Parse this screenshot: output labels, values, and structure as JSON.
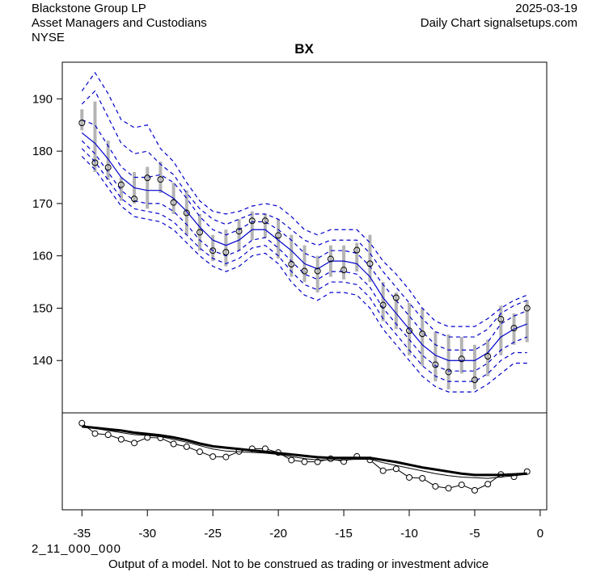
{
  "header": {
    "company": "Blackstone Group LP",
    "industry": "Asset Managers and Custodians",
    "exchange": "NYSE",
    "date": "2025-03-19",
    "source": "Daily Chart signalsetups.com"
  },
  "footer": {
    "code": "2_11_000_000",
    "disclaimer": "Output of a model. Not to be construed as trading or investment advice"
  },
  "chart_data": {
    "type": "line",
    "title": "BX",
    "xlabel": "",
    "ylabel": "",
    "x_ticks": [
      -35,
      -30,
      -25,
      -20,
      -15,
      -10,
      -5,
      0
    ],
    "y_ticks": [
      140,
      150,
      160,
      170,
      180,
      190
    ],
    "xlim": [
      -36.5,
      0.5
    ],
    "ylim": [
      130,
      197
    ],
    "grid": false,
    "colors": {
      "band": "#0000cc",
      "range": "#b4b4b4",
      "close": "#000000"
    },
    "x": [
      -35,
      -34,
      -33,
      -32,
      -31,
      -30,
      -29,
      -28,
      -27,
      -26,
      -25,
      -24,
      -23,
      -22,
      -21,
      -20,
      -19,
      -18,
      -17,
      -16,
      -15,
      -14,
      -13,
      -12,
      -11,
      -10,
      -9,
      -8,
      -7,
      -6,
      -5,
      -4,
      -3,
      -2,
      -1
    ],
    "close": [
      185.4,
      177.8,
      176.9,
      173.6,
      170.9,
      174.9,
      174.6,
      170.2,
      168.2,
      164.5,
      161.0,
      160.7,
      164.7,
      166.7,
      166.7,
      163.9,
      158.4,
      157.1,
      157.1,
      159.4,
      157.3,
      161.1,
      158.5,
      150.6,
      152.0,
      145.7,
      145.1,
      139.2,
      137.8,
      140.3,
      136.3,
      140.8,
      147.9,
      146.2,
      150.0
    ],
    "high": [
      188.0,
      189.5,
      182.0,
      175.0,
      176.0,
      177.0,
      178.0,
      174.0,
      172.5,
      168.0,
      164.0,
      165.0,
      167.0,
      168.5,
      168.0,
      167.0,
      164.0,
      162.0,
      160.0,
      162.0,
      162.0,
      162.5,
      164.0,
      155.0,
      153.0,
      151.0,
      150.0,
      145.5,
      145.0,
      144.5,
      143.0,
      144.0,
      150.5,
      149.0,
      151.5
    ],
    "low": [
      184.0,
      176.0,
      174.5,
      170.5,
      170.0,
      169.0,
      172.0,
      168.0,
      164.0,
      161.0,
      159.0,
      158.0,
      161.0,
      163.0,
      163.5,
      159.5,
      156.0,
      155.0,
      153.0,
      156.0,
      155.5,
      157.0,
      155.0,
      147.5,
      146.0,
      141.0,
      139.0,
      136.0,
      134.5,
      137.5,
      134.5,
      137.0,
      141.0,
      143.0,
      143.5
    ],
    "series": [
      {
        "name": "center",
        "style": "solid",
        "values": [
          183.5,
          181.5,
          178.5,
          175.0,
          173.0,
          172.5,
          172.5,
          171.0,
          168.5,
          165.5,
          163.0,
          162.0,
          163.0,
          165.0,
          165.0,
          163.0,
          161.0,
          158.5,
          157.5,
          159.0,
          159.0,
          158.5,
          156.0,
          152.0,
          149.0,
          146.0,
          143.0,
          141.0,
          140.0,
          140.0,
          140.0,
          141.5,
          144.5,
          146.0,
          147.0
        ]
      },
      {
        "name": "band-up-1",
        "style": "dashed",
        "values": [
          186.0,
          185.0,
          181.0,
          177.0,
          175.0,
          175.0,
          175.5,
          174.0,
          171.0,
          167.5,
          165.0,
          164.0,
          165.0,
          166.5,
          166.5,
          165.0,
          163.0,
          160.5,
          159.5,
          161.0,
          161.0,
          160.5,
          158.0,
          154.5,
          151.5,
          148.5,
          145.5,
          143.0,
          142.0,
          142.0,
          142.0,
          143.5,
          147.0,
          148.5,
          149.5
        ]
      },
      {
        "name": "band-up-2",
        "style": "dashed",
        "values": [
          189.0,
          191.5,
          186.5,
          181.5,
          179.5,
          180.0,
          177.5,
          175.5,
          172.0,
          169.0,
          167.0,
          166.0,
          167.0,
          168.0,
          168.0,
          167.0,
          165.0,
          163.0,
          162.0,
          163.0,
          163.0,
          163.0,
          160.5,
          157.0,
          154.0,
          151.0,
          148.0,
          145.5,
          144.5,
          144.5,
          144.5,
          146.0,
          149.0,
          150.5,
          151.5
        ]
      },
      {
        "name": "band-up-3",
        "style": "dashed",
        "values": [
          191.5,
          195.0,
          191.0,
          186.0,
          184.5,
          185.0,
          180.5,
          178.0,
          174.0,
          170.5,
          168.5,
          168.0,
          168.5,
          169.5,
          170.0,
          169.5,
          167.5,
          165.0,
          164.0,
          165.0,
          165.0,
          165.0,
          162.5,
          159.0,
          156.5,
          153.5,
          150.0,
          147.5,
          146.5,
          146.5,
          146.5,
          148.0,
          150.0,
          151.5,
          152.5
        ]
      },
      {
        "name": "band-dn-1",
        "style": "dashed",
        "values": [
          182.0,
          179.5,
          176.0,
          172.5,
          170.5,
          170.0,
          170.0,
          168.5,
          166.0,
          163.0,
          161.0,
          160.0,
          161.0,
          163.0,
          163.5,
          161.5,
          159.0,
          156.5,
          155.5,
          157.0,
          157.0,
          156.5,
          154.0,
          150.0,
          147.0,
          144.0,
          141.0,
          139.0,
          138.0,
          138.0,
          138.0,
          139.5,
          142.0,
          143.5,
          144.5
        ]
      },
      {
        "name": "band-dn-2",
        "style": "dashed",
        "values": [
          180.5,
          178.0,
          174.5,
          171.0,
          169.0,
          168.5,
          168.0,
          166.5,
          164.0,
          161.5,
          159.5,
          158.5,
          159.5,
          161.5,
          162.0,
          160.0,
          157.0,
          154.5,
          153.5,
          155.0,
          155.0,
          154.5,
          152.0,
          148.0,
          145.0,
          142.0,
          139.0,
          137.0,
          136.0,
          136.0,
          136.0,
          137.5,
          140.0,
          141.5,
          141.5
        ]
      },
      {
        "name": "band-dn-3",
        "style": "dashed",
        "values": [
          179.0,
          176.5,
          173.0,
          169.5,
          167.5,
          167.0,
          166.5,
          165.0,
          162.5,
          160.0,
          158.0,
          157.0,
          158.0,
          160.0,
          160.5,
          158.5,
          155.0,
          152.5,
          151.5,
          153.0,
          153.0,
          152.5,
          150.0,
          146.0,
          143.0,
          140.0,
          137.0,
          135.0,
          134.0,
          134.0,
          134.0,
          135.5,
          137.5,
          139.5,
          139.5
        ]
      }
    ],
    "lower_panel": {
      "series": [
        {
          "name": "close-line",
          "style": "circles",
          "values": [
            185.4,
            177.8,
            176.9,
            173.6,
            170.9,
            174.9,
            174.6,
            170.2,
            168.2,
            164.5,
            161.0,
            160.7,
            164.7,
            166.7,
            166.7,
            163.9,
            158.4,
            157.1,
            157.1,
            159.4,
            157.3,
            161.1,
            158.5,
            150.6,
            152.0,
            145.7,
            145.1,
            139.2,
            137.8,
            140.3,
            136.3,
            140.8,
            147.9,
            146.2,
            150.0
          ]
        },
        {
          "name": "slow-average",
          "style": "thick",
          "values": [
            183.0,
            182.0,
            181.0,
            180.0,
            178.5,
            177.5,
            176.5,
            175.0,
            173.0,
            170.5,
            168.5,
            167.5,
            166.5,
            165.5,
            164.5,
            163.5,
            162.5,
            161.5,
            160.5,
            160.0,
            160.0,
            160.0,
            160.0,
            158.5,
            157.0,
            155.0,
            153.0,
            151.5,
            150.0,
            148.5,
            147.5,
            147.5,
            147.5,
            148.0,
            148.5
          ]
        },
        {
          "name": "fast-average",
          "style": "thin",
          "values": [
            183.5,
            181.5,
            180.0,
            178.5,
            177.0,
            176.5,
            175.5,
            173.5,
            171.5,
            169.0,
            166.5,
            165.0,
            164.5,
            164.0,
            163.5,
            162.5,
            161.0,
            159.5,
            158.5,
            158.5,
            158.5,
            159.0,
            159.0,
            156.5,
            154.5,
            152.5,
            150.5,
            148.5,
            147.0,
            146.0,
            145.5,
            145.0,
            146.0,
            147.0,
            148.0
          ]
        }
      ],
      "ylim": [
        125,
        190
      ]
    }
  }
}
